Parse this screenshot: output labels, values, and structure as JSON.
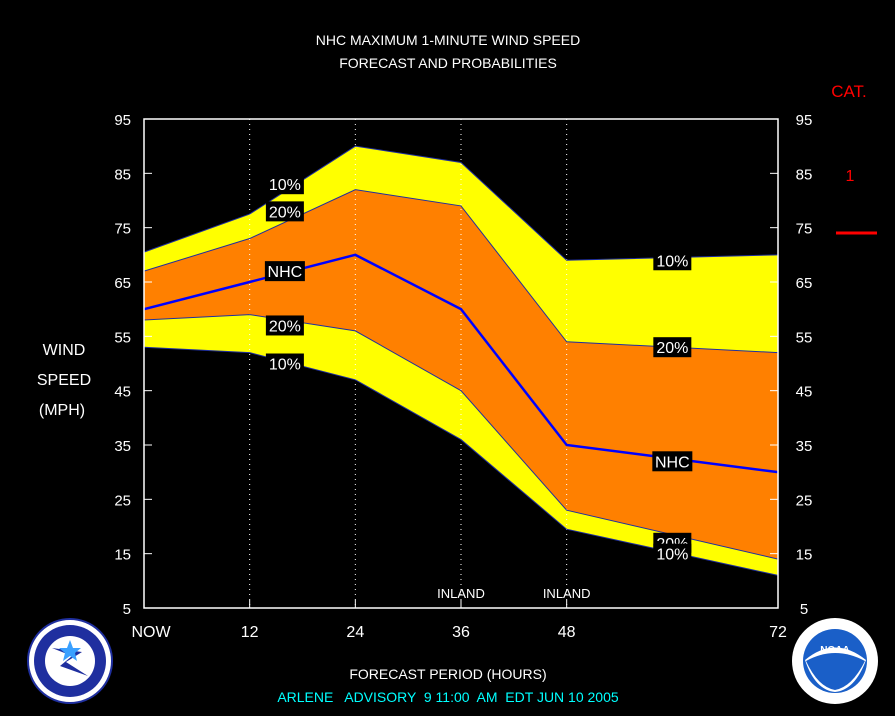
{
  "header": {
    "title_line1": "NHC MAXIMUM 1-MINUTE WIND SPEED",
    "title_line2": "FORECAST AND PROBABILITIES"
  },
  "category_panel": {
    "heading": "CAT.",
    "value": "1",
    "color": "#ff0000"
  },
  "axis": {
    "ylabel_lines": [
      "WIND",
      "SPEED",
      "(MPH)"
    ],
    "xlabel": "FORECAST PERIOD (HOURS)",
    "x_ticks": [
      {
        "x": 0,
        "label": "NOW"
      },
      {
        "x": 12,
        "label": "12"
      },
      {
        "x": 24,
        "label": "24"
      },
      {
        "x": 36,
        "label": "36"
      },
      {
        "x": 48,
        "label": "48"
      },
      {
        "x": 72,
        "label": "72"
      }
    ],
    "y_ticks": [
      5,
      15,
      25,
      35,
      45,
      55,
      65,
      75,
      85,
      95
    ],
    "inland_markers": [
      {
        "x": 36,
        "label": "INLAND"
      },
      {
        "x": 48,
        "label": "INLAND"
      }
    ]
  },
  "footer": {
    "advisory": "ARLENE   ADVISORY  9 11:00  AM  EDT JUN 10 2005",
    "color": "#00ffff"
  },
  "logos": {
    "left": "nws-logo",
    "right": "noaa-logo",
    "left_text": "NATIONAL WEATHER SERVICE",
    "right_text": "NATIONAL OCEANIC AND ATMOSPHERIC ADMINISTRATION • U.S. DEPARTMENT OF COMMERCE",
    "right_center": "NOAA"
  },
  "chart_data": {
    "type": "area",
    "title": "NHC MAXIMUM 1-MINUTE WIND SPEED FORECAST AND PROBABILITIES",
    "xlabel": "FORECAST PERIOD (HOURS)",
    "ylabel": "WIND SPEED (MPH)",
    "xlim": [
      0,
      72
    ],
    "ylim": [
      5,
      95
    ],
    "grid": "vertical dotted at 12, 24, 36, 48",
    "x": [
      0,
      12,
      24,
      36,
      48,
      72
    ],
    "series": [
      {
        "name": "10%",
        "role": "upper-10",
        "values": [
          70.5,
          77.5,
          90,
          87,
          69,
          70
        ],
        "color": "#ffff00"
      },
      {
        "name": "20%",
        "role": "upper-20",
        "values": [
          67,
          73,
          82,
          79,
          54,
          52
        ],
        "color": "#ff8000"
      },
      {
        "name": "NHC",
        "role": "forecast",
        "values": [
          60,
          65,
          70,
          60,
          35,
          30
        ],
        "color": "#0000ff"
      },
      {
        "name": "20%",
        "role": "lower-20",
        "values": [
          58,
          59,
          56,
          45,
          23,
          14
        ],
        "color": "#ff8000"
      },
      {
        "name": "10%",
        "role": "lower-10",
        "values": [
          53,
          52,
          47,
          36,
          19.5,
          11
        ],
        "color": "#ffff00"
      }
    ],
    "labels": [
      {
        "text": "10%",
        "x": 16,
        "y": 83
      },
      {
        "text": "20%",
        "x": 16,
        "y": 78
      },
      {
        "text": "NHC",
        "x": 16,
        "y": 67
      },
      {
        "text": "20%",
        "x": 16,
        "y": 57
      },
      {
        "text": "10%",
        "x": 16,
        "y": 50
      },
      {
        "text": "10%",
        "x": 60,
        "y": 69
      },
      {
        "text": "20%",
        "x": 60,
        "y": 53
      },
      {
        "text": "NHC",
        "x": 60,
        "y": 32
      },
      {
        "text": "20%",
        "x": 60,
        "y": 17
      },
      {
        "text": "10%",
        "x": 60,
        "y": 15
      }
    ]
  }
}
